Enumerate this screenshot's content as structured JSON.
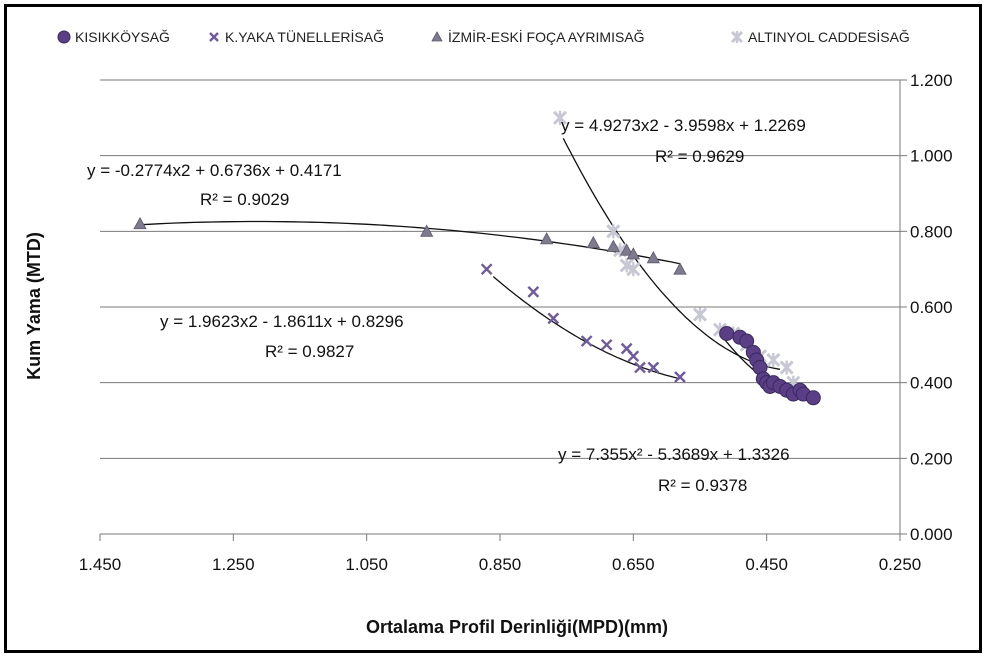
{
  "chart_data": {
    "type": "scatter",
    "title": "",
    "xlabel": "Ortalama Profil Derinliği(MPD)(mm)",
    "ylabel": "Kum Yama (MTD)",
    "xlim": [
      1.45,
      0.25
    ],
    "x_reversed": true,
    "ylim": [
      0,
      1.2
    ],
    "x_ticks": [
      "1.450",
      "1.250",
      "1.050",
      "0.850",
      "0.650",
      "0.450",
      "0.250"
    ],
    "x_tick_values": [
      1.45,
      1.25,
      1.05,
      0.85,
      0.65,
      0.45,
      0.25
    ],
    "y_ticks": [
      "0.000",
      "0.200",
      "0.400",
      "0.600",
      "0.800",
      "1.000",
      "1.200"
    ],
    "y_tick_values": [
      0,
      0.2,
      0.4,
      0.6,
      0.8,
      1.0,
      1.2
    ],
    "y_axis_side": "right",
    "grid": "horizontal",
    "legend_position": "top",
    "series": [
      {
        "name": "KISIKKÖYSAĞ",
        "marker": "circle",
        "color": "#5a3f86",
        "points": [
          [
            0.51,
            0.53
          ],
          [
            0.49,
            0.52
          ],
          [
            0.48,
            0.51
          ],
          [
            0.47,
            0.48
          ],
          [
            0.465,
            0.46
          ],
          [
            0.46,
            0.44
          ],
          [
            0.455,
            0.41
          ],
          [
            0.45,
            0.4
          ],
          [
            0.445,
            0.39
          ],
          [
            0.44,
            0.4
          ],
          [
            0.43,
            0.39
          ],
          [
            0.42,
            0.38
          ],
          [
            0.41,
            0.37
          ],
          [
            0.4,
            0.38
          ],
          [
            0.395,
            0.37
          ],
          [
            0.38,
            0.36
          ]
        ],
        "trendline": {
          "equation": "y = 7.355x² - 5.3689x + 1.3326",
          "r2": "R² = 0.9378",
          "coef": [
            7.355,
            -5.3689,
            1.3326
          ],
          "range": [
            0.52,
            0.38
          ]
        }
      },
      {
        "name": "K.YAKA TÜNELLERİSAĞ",
        "marker": "x",
        "color": "#6e5a9c",
        "points": [
          [
            0.87,
            0.7
          ],
          [
            0.8,
            0.64
          ],
          [
            0.77,
            0.57
          ],
          [
            0.72,
            0.51
          ],
          [
            0.69,
            0.5
          ],
          [
            0.66,
            0.49
          ],
          [
            0.65,
            0.47
          ],
          [
            0.64,
            0.44
          ],
          [
            0.62,
            0.44
          ],
          [
            0.58,
            0.415
          ]
        ],
        "trendline": {
          "equation": "y = 1.9623x2 - 1.8611x + 0.8296",
          "r2": "R² = 0.9827",
          "coef": [
            1.9623,
            -1.8611,
            0.8296
          ],
          "range": [
            0.86,
            0.58
          ]
        }
      },
      {
        "name": "İZMİR-ESKİ FOÇA AYRIMISAĞ",
        "marker": "triangle",
        "color": "#7f7a8e",
        "points": [
          [
            1.39,
            0.82
          ],
          [
            0.96,
            0.8
          ],
          [
            0.78,
            0.78
          ],
          [
            0.71,
            0.77
          ],
          [
            0.68,
            0.76
          ],
          [
            0.66,
            0.75
          ],
          [
            0.65,
            0.74
          ],
          [
            0.62,
            0.73
          ],
          [
            0.58,
            0.7
          ]
        ],
        "trendline": {
          "equation": "y = -0.2774x2 + 0.6736x + 0.4171",
          "r2": "R² = 0.9029",
          "coef": [
            -0.2774,
            0.6736,
            0.4171
          ],
          "range": [
            1.39,
            0.58
          ]
        }
      },
      {
        "name": "ALTINYOL CADDESİSAĞ",
        "marker": "star",
        "color": "#c8c8d4",
        "points": [
          [
            0.76,
            1.1
          ],
          [
            0.68,
            0.8
          ],
          [
            0.67,
            0.75
          ],
          [
            0.66,
            0.71
          ],
          [
            0.65,
            0.7
          ],
          [
            0.55,
            0.58
          ],
          [
            0.52,
            0.54
          ],
          [
            0.5,
            0.53
          ],
          [
            0.48,
            0.5
          ],
          [
            0.46,
            0.47
          ],
          [
            0.44,
            0.46
          ],
          [
            0.42,
            0.44
          ],
          [
            0.41,
            0.4
          ]
        ],
        "trendline": {
          "equation": "y = 4.9273x2 - 3.9598x + 1.2269",
          "r2": "R² = 0.9629",
          "coef": [
            4.9273,
            -3.9598,
            1.2269
          ],
          "range": [
            0.755,
            0.43
          ]
        }
      }
    ],
    "annotations": [
      {
        "text": "y = -0.2774x2 + 0.6736x + 0.4171"
      },
      {
        "text": "R² = 0.9029"
      },
      {
        "text": "y = 4.9273x2 - 3.9598x + 1.2269"
      },
      {
        "text": "R² = 0.9629"
      },
      {
        "text": "y = 1.9623x2 - 1.8611x + 0.8296"
      },
      {
        "text": "R² = 0.9827"
      },
      {
        "text": "y = 7.355x² - 5.3689x + 1.3326"
      },
      {
        "text": "R² = 0.9378"
      }
    ]
  }
}
